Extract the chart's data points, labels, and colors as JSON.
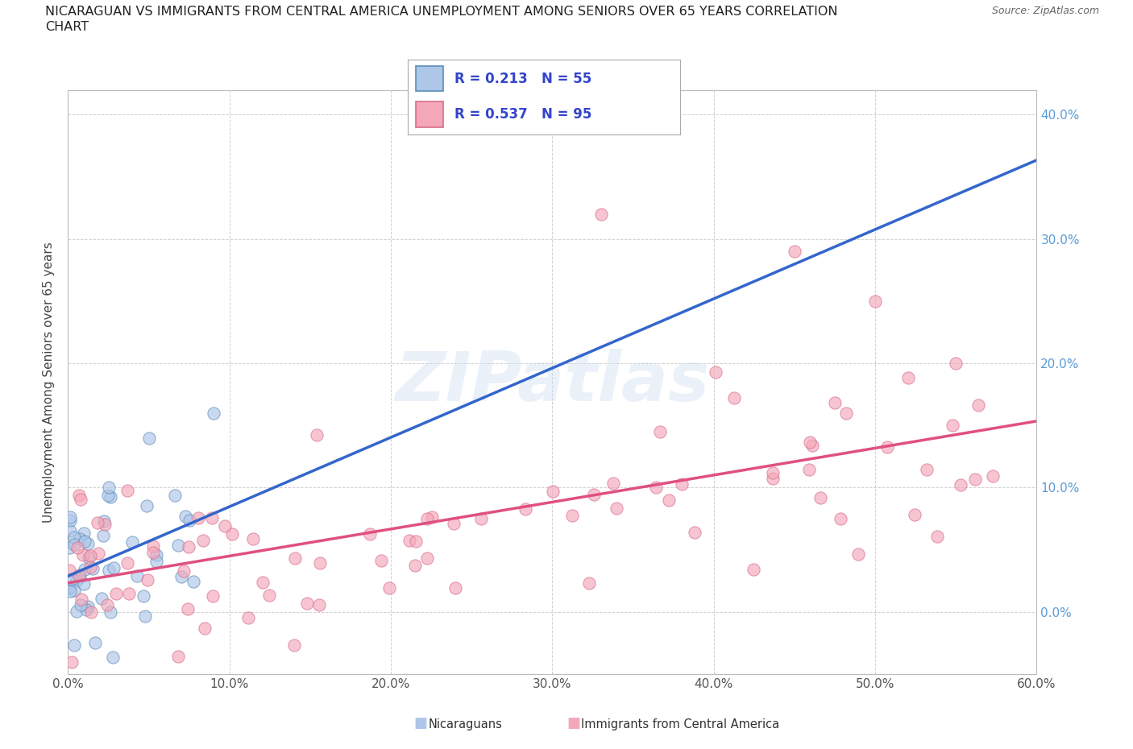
{
  "title_line1": "NICARAGUAN VS IMMIGRANTS FROM CENTRAL AMERICA UNEMPLOYMENT AMONG SENIORS OVER 65 YEARS CORRELATION",
  "title_line2": "CHART",
  "source_text": "Source: ZipAtlas.com",
  "ylabel": "Unemployment Among Seniors over 65 years",
  "R_nicaraguan": 0.213,
  "N_nicaraguan": 55,
  "R_central": 0.537,
  "N_central": 95,
  "blue_fill": "#AEC6E8",
  "blue_edge": "#5B8DB8",
  "pink_fill": "#F4A7B9",
  "pink_edge": "#D96E8A",
  "blue_line": "#3366CC",
  "pink_line": "#E05080",
  "legend_text_color": "#3344CC",
  "grid_color": "#CCCCCC",
  "tick_color_y": "#5B9BD5",
  "tick_color_x": "#555555",
  "xlim": [
    0.0,
    0.6
  ],
  "ylim": [
    -0.05,
    0.42
  ],
  "xticks": [
    0.0,
    0.1,
    0.2,
    0.3,
    0.4,
    0.5,
    0.6
  ],
  "yticks": [
    0.0,
    0.1,
    0.2,
    0.3,
    0.4
  ],
  "right_ytick_labels": [
    "0.0%",
    "10.0%",
    "20.0%",
    "30.0%",
    "40.0%"
  ]
}
